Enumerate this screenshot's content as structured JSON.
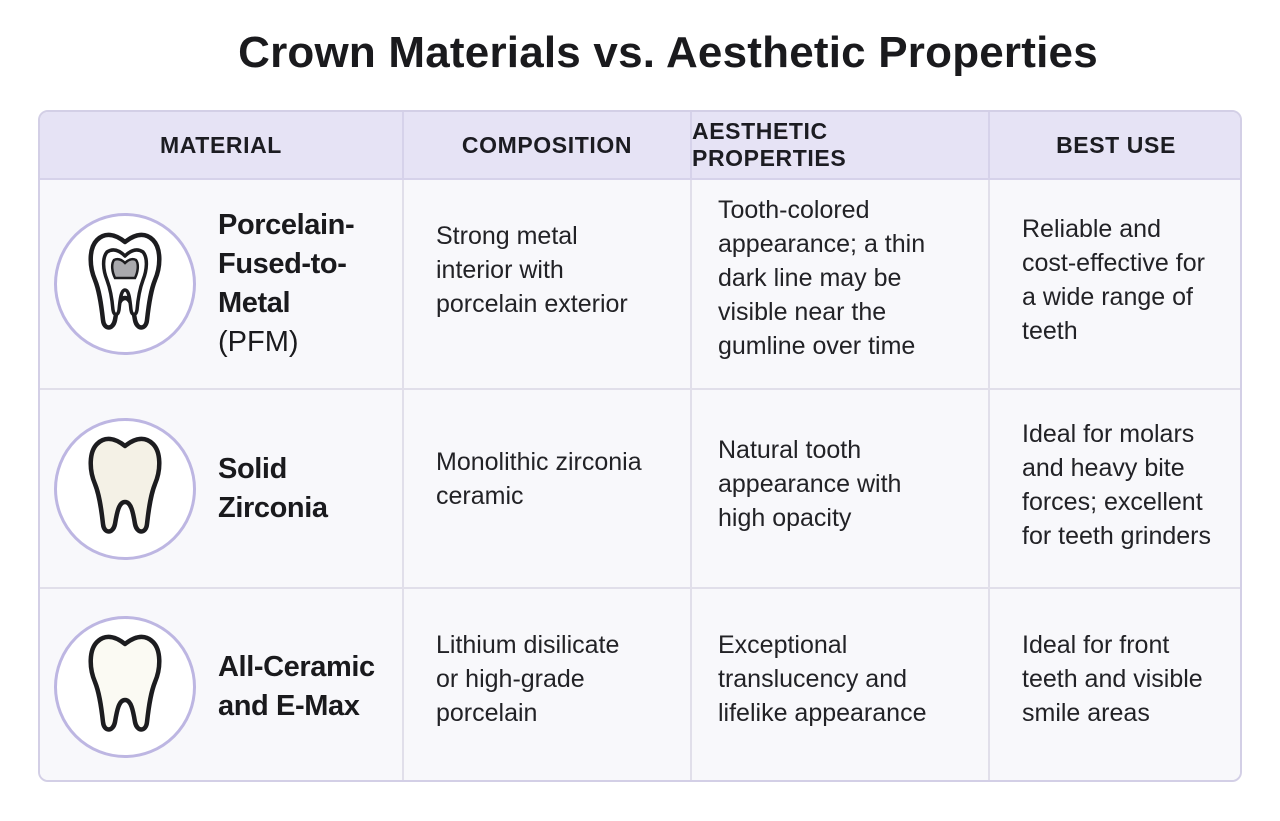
{
  "title": "Crown Materials vs. Aesthetic Properties",
  "columns": [
    "MATERIAL",
    "COMPOSITION",
    "AESTHETIC PROPERTIES",
    "BEST USE"
  ],
  "rows": [
    {
      "icon": "tooth-with-metal-core-icon",
      "material_name": "Porcelain-Fused-to-Metal",
      "material_abbr": "(PFM)",
      "composition": "Strong metal interior with porcelain exterior",
      "aesthetic": "Tooth-colored appearance; a thin dark line may be visible near the gumline over time",
      "best_use": "Reliable and cost-effective for a wide range of teeth"
    },
    {
      "icon": "zirconia-tooth-icon",
      "material_name": "Solid Zirconia",
      "material_abbr": "",
      "composition": "Monolithic zirconia ceramic",
      "aesthetic": "Natural tooth appearance with high opacity",
      "best_use": "Ideal for molars and heavy bite forces; excellent for teeth grinders"
    },
    {
      "icon": "ceramic-tooth-icon",
      "material_name": "All-Ceramic and E-Max",
      "material_abbr": "",
      "composition": "Lithium disilicate or high-grade porcelain",
      "aesthetic": "Exceptional translucency and lifelike appearance",
      "best_use": "Ideal for front teeth and visible smile areas"
    }
  ],
  "colors": {
    "header_bg": "#e6e3f5",
    "border": "#d3cfe6",
    "badge_ring": "#bdb6e2",
    "metal_core": "#a9a9ad",
    "zirconia_fill": "#f4f1e6",
    "ceramic_fill": "#fbfaf3"
  }
}
